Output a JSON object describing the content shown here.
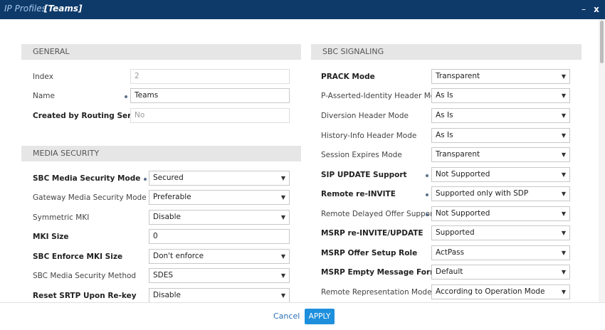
{
  "window": {
    "title": "IP Profiles",
    "subtitle": "[Teams]",
    "minimize_symbol": "–",
    "close_symbol": "x"
  },
  "general": {
    "header": "GENERAL",
    "index": {
      "label": "Index",
      "value": "2"
    },
    "name": {
      "label": "Name",
      "value": "Teams"
    },
    "created_by": {
      "label": "Created by Routing Server",
      "value": "No"
    }
  },
  "media_security": {
    "header": "MEDIA SECURITY",
    "sbc_media_security_mode": {
      "label": "SBC Media Security Mode",
      "value": "Secured"
    },
    "gateway_media_security_mode": {
      "label": "Gateway Media Security Mode",
      "value": "Preferable"
    },
    "symmetric_mki": {
      "label": "Symmetric MKI",
      "value": "Disable"
    },
    "mki_size": {
      "label": "MKI Size",
      "value": "0"
    },
    "sbc_enforce_mki_size": {
      "label": "SBC Enforce MKI Size",
      "value": "Don't enforce"
    },
    "sbc_media_security_method": {
      "label": "SBC Media Security Method",
      "value": "SDES"
    },
    "reset_srtp": {
      "label": "Reset SRTP Upon Re-key",
      "value": "Disable"
    }
  },
  "sbc_signaling": {
    "header": "SBC SIGNALING",
    "prack_mode": {
      "label": "PRACK Mode",
      "value": "Transparent"
    },
    "pai_header_mode": {
      "label": "P-Asserted-Identity Header Mode",
      "value": "As Is"
    },
    "diversion_header_mode": {
      "label": "Diversion Header Mode",
      "value": "As Is"
    },
    "history_info_header_mode": {
      "label": "History-Info Header Mode",
      "value": "As Is"
    },
    "session_expires_mode": {
      "label": "Session Expires Mode",
      "value": "Transparent"
    },
    "sip_update_support": {
      "label": "SIP UPDATE Support",
      "value": "Not Supported"
    },
    "remote_reinvite": {
      "label": "Remote re-INVITE",
      "value": "Supported only with SDP"
    },
    "remote_delayed_offer": {
      "label": "Remote Delayed Offer Support",
      "value": "Not Supported"
    },
    "msrp_reinvite_update": {
      "label": "MSRP re-INVITE/UPDATE",
      "value": "Supported"
    },
    "msrp_offer_setup_role": {
      "label": "MSRP Offer Setup Role",
      "value": "ActPass"
    },
    "msrp_empty_message_format": {
      "label": "MSRP Empty Message Format",
      "value": "Default"
    },
    "remote_representation_mode": {
      "label": "Remote Representation Mode",
      "value": "According to Operation Mode"
    }
  },
  "footer": {
    "cancel_label": "Cancel",
    "apply_label": "APPLY"
  },
  "icons": {
    "dropdown_arrow": "▼"
  },
  "colors": {
    "titlebar": "#0e3a6a",
    "apply_button": "#1e8fdc",
    "section_header_bg": "#e6e6e6"
  }
}
